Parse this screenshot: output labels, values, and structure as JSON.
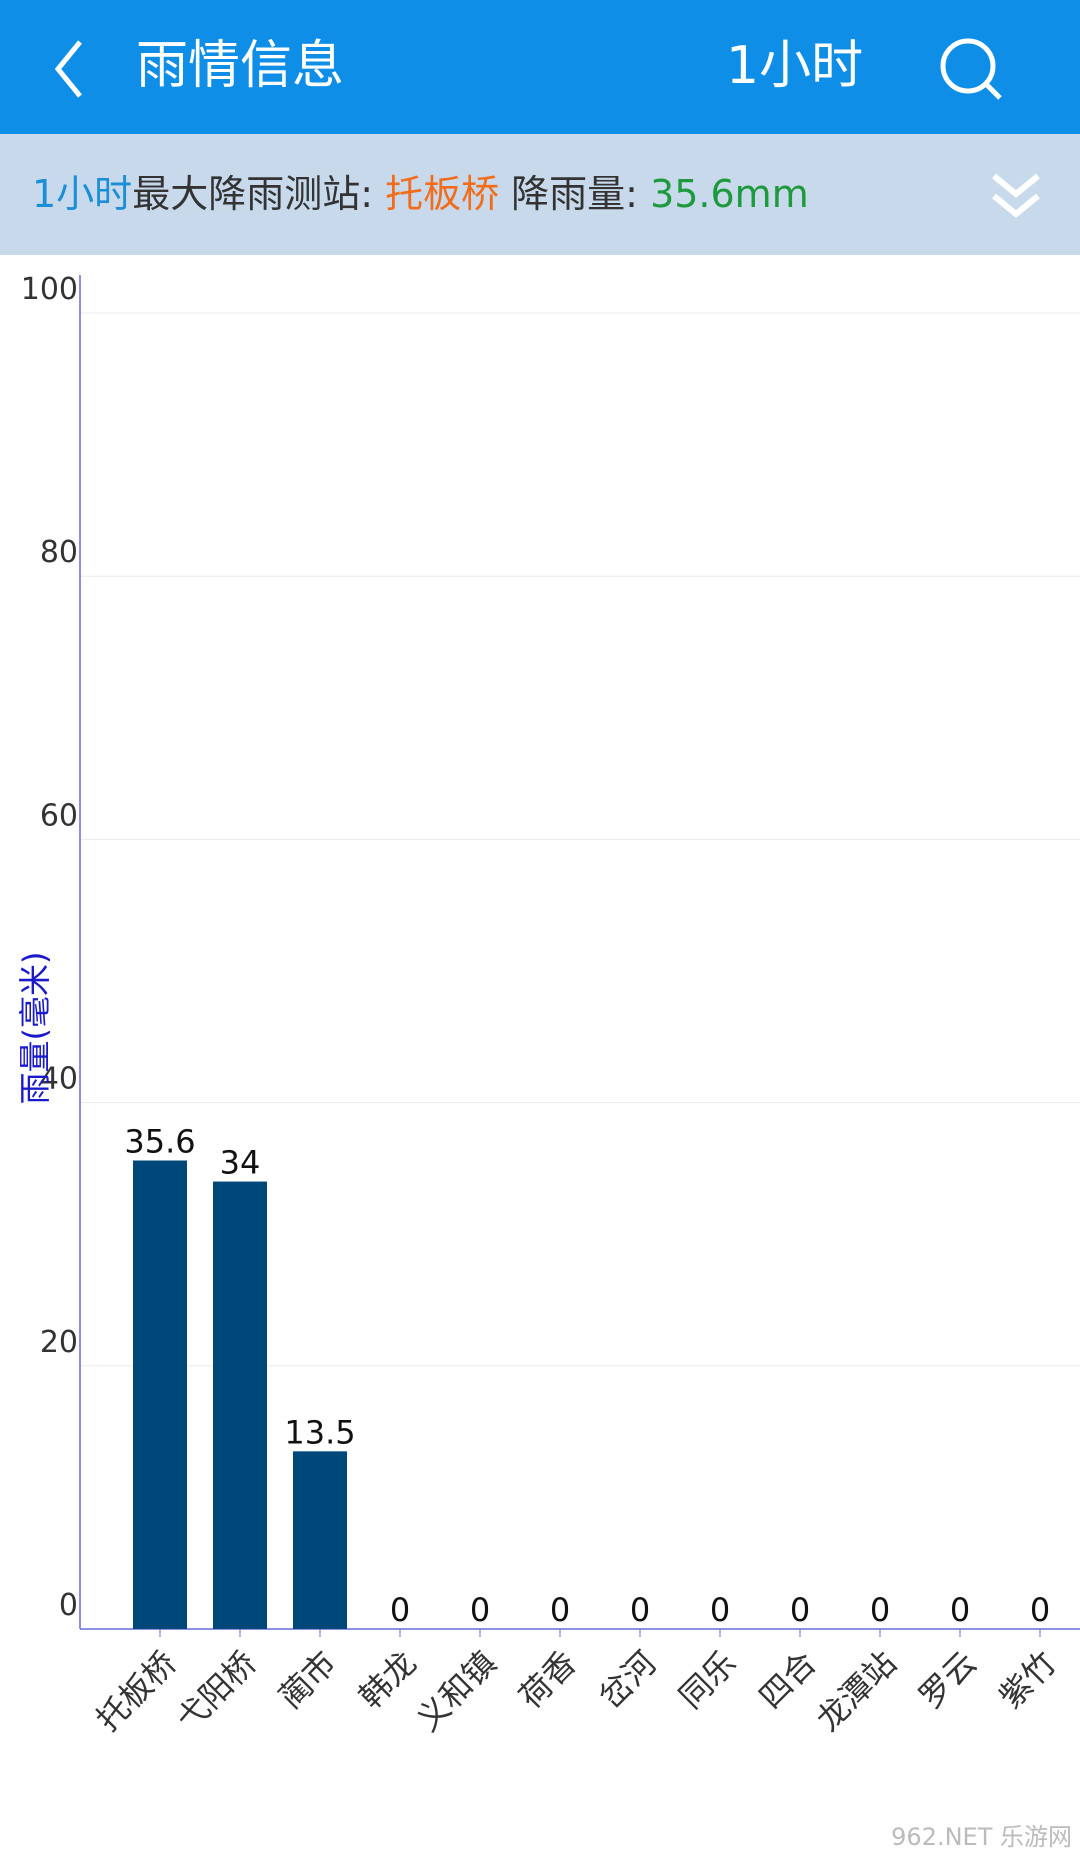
{
  "header": {
    "title": "雨情信息",
    "period_button": "1小时"
  },
  "summary": {
    "period": "1小时",
    "label": "最大降雨测站: ",
    "station": "托板桥",
    "rain_label": " 降雨量: ",
    "rain_value": "35.6mm"
  },
  "chart_data": {
    "type": "bar",
    "y_label": "雨量(毫米)",
    "categories": [
      "托板桥",
      "弋阳桥",
      "蔺市",
      "韩龙",
      "义和镇",
      "荷香",
      "岔河",
      "同乐",
      "四合",
      "龙潭站",
      "罗云",
      "紫竹"
    ],
    "values": [
      35.6,
      34,
      13.5,
      0,
      0,
      0,
      0,
      0,
      0,
      0,
      0,
      0
    ],
    "color": "#00477a",
    "ylim": [
      0,
      100
    ],
    "yticks": [
      0,
      20,
      40,
      60,
      80,
      100
    ],
    "grid": true
  },
  "watermark": "962.NET 乐游网"
}
